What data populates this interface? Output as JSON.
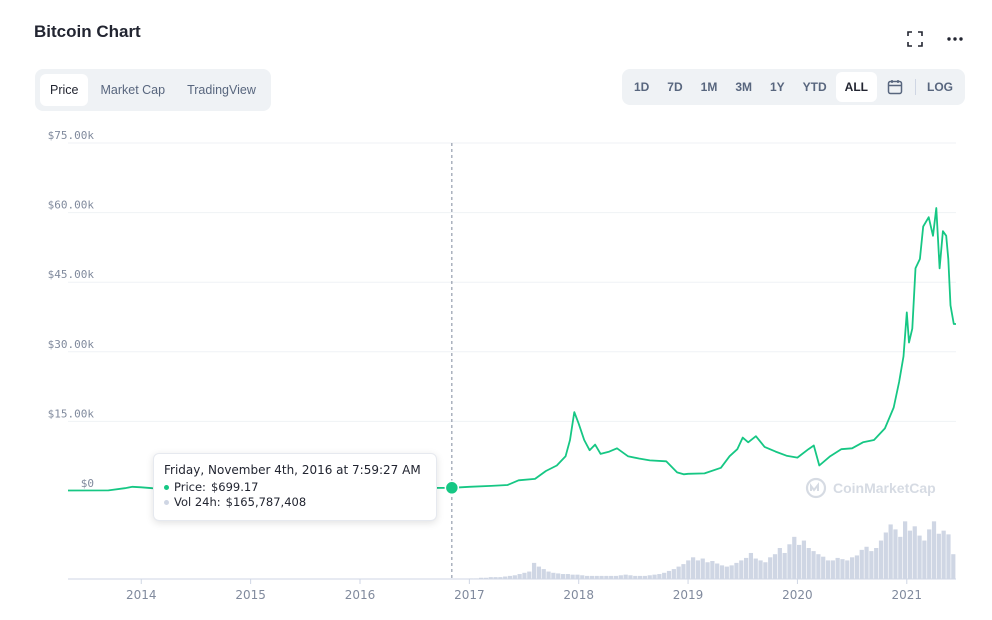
{
  "header": {
    "title": "Bitcoin Chart"
  },
  "icons": {
    "fullscreen": "fullscreen-icon",
    "more": "more-icon",
    "calendar": "calendar-icon",
    "logo": "coinmarketcap-logo-icon"
  },
  "tabs": [
    {
      "label": "Price",
      "active": true
    },
    {
      "label": "Market Cap",
      "active": false
    },
    {
      "label": "TradingView",
      "active": false
    }
  ],
  "ranges": {
    "d1": "1D",
    "d7": "7D",
    "m1": "1M",
    "m3": "3M",
    "y1": "1Y",
    "ytd": "YTD",
    "all": "ALL",
    "log": "LOG",
    "active": "ALL"
  },
  "tooltip": {
    "date": "Friday, November 4th, 2016 at 7:59:27 AM",
    "price_label": "Price:",
    "price_value": "$699.17",
    "volume_label": "Vol 24h:",
    "volume_value": "$165,787,408"
  },
  "watermark": "CoinMarketCap",
  "colors": {
    "line": "#16c784",
    "volume": "#cfd6e4",
    "grid": "#eff2f5",
    "text_muted": "#808a9d"
  },
  "chart_data": {
    "type": "line",
    "title": "Bitcoin Chart",
    "ylim": [
      0,
      75000
    ],
    "y_ticks": [
      {
        "value": 0,
        "label": "$0"
      },
      {
        "value": 15000,
        "label": "$15.00k"
      },
      {
        "value": 30000,
        "label": "$30.00k"
      },
      {
        "value": 45000,
        "label": "$45.00k"
      },
      {
        "value": 60000,
        "label": "$60.00k"
      },
      {
        "value": 75000,
        "label": "$75.00k"
      }
    ],
    "x_ticks": [
      "2014",
      "2015",
      "2016",
      "2017",
      "2018",
      "2019",
      "2020",
      "2021"
    ],
    "xlim": [
      2013.33,
      2021.45
    ],
    "hover_x": 2016.84,
    "hover_y": 699.17,
    "series": [
      {
        "x": [
          2013.33,
          2013.7,
          2013.85,
          2013.92,
          2014.0,
          2014.1,
          2014.3,
          2014.6,
          2014.9,
          2015.0,
          2015.3,
          2015.6,
          2015.9,
          2016.2,
          2016.5,
          2016.84,
          2017.0,
          2017.2,
          2017.35,
          2017.45,
          2017.6,
          2017.7,
          2017.8,
          2017.88,
          2017.92,
          2017.96,
          2018.0,
          2018.05,
          2018.1,
          2018.15,
          2018.2,
          2018.28,
          2018.35,
          2018.45,
          2018.55,
          2018.65,
          2018.8,
          2018.9,
          2018.96,
          2019.0,
          2019.15,
          2019.3,
          2019.38,
          2019.45,
          2019.5,
          2019.55,
          2019.62,
          2019.7,
          2019.8,
          2019.9,
          2020.0,
          2020.1,
          2020.15,
          2020.2,
          2020.3,
          2020.4,
          2020.5,
          2020.6,
          2020.7,
          2020.8,
          2020.88,
          2020.93,
          2020.97,
          2021.0,
          2021.02,
          2021.05,
          2021.08,
          2021.12,
          2021.15,
          2021.2,
          2021.24,
          2021.27,
          2021.3,
          2021.33,
          2021.36,
          2021.38,
          2021.4,
          2021.43,
          2021.45
        ],
        "y": [
          100,
          120,
          600,
          900,
          800,
          600,
          550,
          450,
          350,
          280,
          240,
          260,
          420,
          430,
          650,
          699,
          900,
          1100,
          1300,
          2300,
          2600,
          4300,
          5500,
          7500,
          11000,
          17000,
          14500,
          11000,
          8800,
          10000,
          8000,
          8500,
          9200,
          7500,
          7000,
          6600,
          6400,
          4000,
          3600,
          3700,
          3800,
          5000,
          7500,
          9000,
          11500,
          10500,
          11800,
          9500,
          8500,
          7600,
          7200,
          9000,
          9800,
          5500,
          7500,
          9000,
          9200,
          10500,
          11000,
          13500,
          18000,
          23500,
          29000,
          38500,
          32000,
          35000,
          48000,
          50000,
          57000,
          59000,
          55000,
          61000,
          48000,
          56000,
          55000,
          50000,
          40000,
          36000,
          36000
        ]
      }
    ],
    "volume": {
      "x_start": 2017.0,
      "x_end": 2021.45,
      "relative_height": [
        0.01,
        0.01,
        0.02,
        0.02,
        0.03,
        0.03,
        0.03,
        0.04,
        0.05,
        0.06,
        0.08,
        0.1,
        0.12,
        0.26,
        0.2,
        0.16,
        0.12,
        0.1,
        0.09,
        0.08,
        0.08,
        0.07,
        0.07,
        0.06,
        0.05,
        0.05,
        0.05,
        0.05,
        0.05,
        0.05,
        0.05,
        0.06,
        0.07,
        0.06,
        0.05,
        0.05,
        0.05,
        0.06,
        0.07,
        0.08,
        0.1,
        0.13,
        0.16,
        0.2,
        0.24,
        0.3,
        0.35,
        0.3,
        0.33,
        0.27,
        0.29,
        0.25,
        0.22,
        0.2,
        0.22,
        0.26,
        0.3,
        0.34,
        0.42,
        0.33,
        0.3,
        0.27,
        0.35,
        0.4,
        0.5,
        0.42,
        0.56,
        0.68,
        0.55,
        0.62,
        0.5,
        0.45,
        0.4,
        0.36,
        0.3,
        0.3,
        0.34,
        0.32,
        0.3,
        0.35,
        0.38,
        0.47,
        0.52,
        0.45,
        0.5,
        0.62,
        0.75,
        0.88,
        0.8,
        0.68,
        0.93,
        0.78,
        0.85,
        0.7,
        0.62,
        0.8,
        0.93,
        0.73,
        0.78,
        0.72,
        0.4
      ]
    }
  }
}
